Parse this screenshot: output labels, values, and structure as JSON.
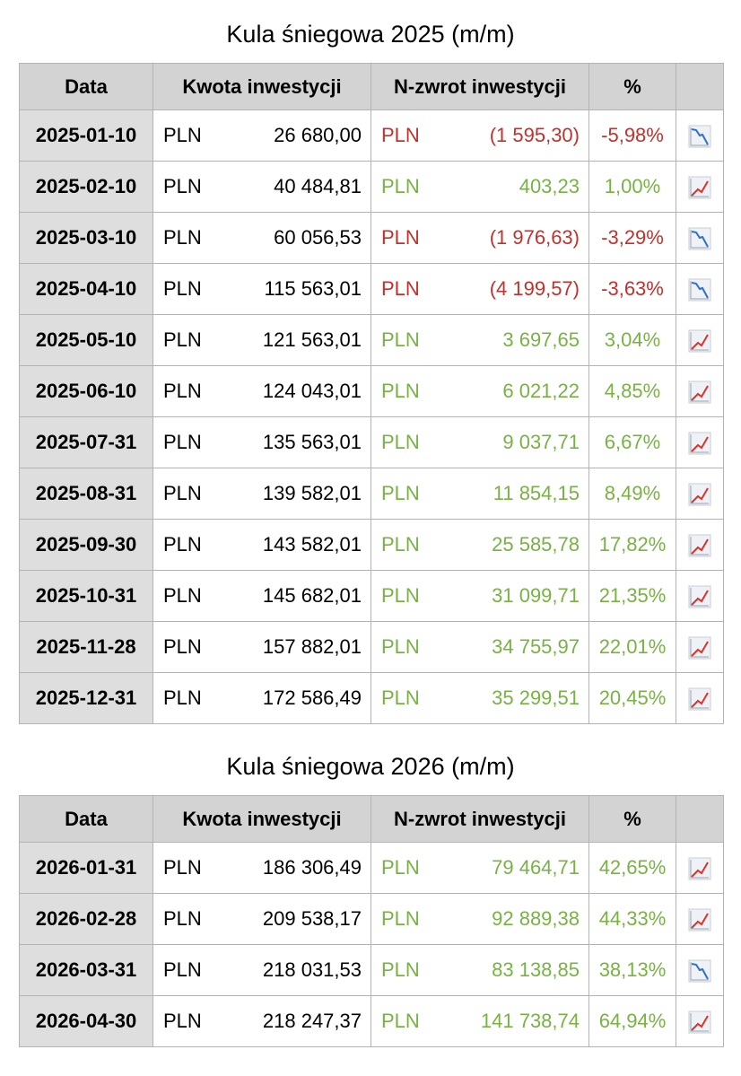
{
  "tables": [
    {
      "title": "Kula śniegowa 2025 (m/m)",
      "headers": [
        "Data",
        "Kwota inwestycji",
        "N-zwrot inwestycji",
        "%",
        ""
      ],
      "rows": [
        {
          "date": "2025-01-10",
          "inv_currency": "PLN",
          "investment": "26 680,00",
          "ret_currency": "PLN",
          "return": "(1 595,30)",
          "pct": "-5,98%",
          "trend": "down"
        },
        {
          "date": "2025-02-10",
          "inv_currency": "PLN",
          "investment": "40 484,81",
          "ret_currency": "PLN",
          "return": "403,23",
          "pct": "1,00%",
          "trend": "up"
        },
        {
          "date": "2025-03-10",
          "inv_currency": "PLN",
          "investment": "60 056,53",
          "ret_currency": "PLN",
          "return": "(1 976,63)",
          "pct": "-3,29%",
          "trend": "down"
        },
        {
          "date": "2025-04-10",
          "inv_currency": "PLN",
          "investment": "115 563,01",
          "ret_currency": "PLN",
          "return": "(4 199,57)",
          "pct": "-3,63%",
          "trend": "down"
        },
        {
          "date": "2025-05-10",
          "inv_currency": "PLN",
          "investment": "121 563,01",
          "ret_currency": "PLN",
          "return": "3 697,65",
          "pct": "3,04%",
          "trend": "up"
        },
        {
          "date": "2025-06-10",
          "inv_currency": "PLN",
          "investment": "124 043,01",
          "ret_currency": "PLN",
          "return": "6 021,22",
          "pct": "4,85%",
          "trend": "up"
        },
        {
          "date": "2025-07-31",
          "inv_currency": "PLN",
          "investment": "135 563,01",
          "ret_currency": "PLN",
          "return": "9 037,71",
          "pct": "6,67%",
          "trend": "up"
        },
        {
          "date": "2025-08-31",
          "inv_currency": "PLN",
          "investment": "139 582,01",
          "ret_currency": "PLN",
          "return": "11 854,15",
          "pct": "8,49%",
          "trend": "up"
        },
        {
          "date": "2025-09-30",
          "inv_currency": "PLN",
          "investment": "143 582,01",
          "ret_currency": "PLN",
          "return": "25 585,78",
          "pct": "17,82%",
          "trend": "up"
        },
        {
          "date": "2025-10-31",
          "inv_currency": "PLN",
          "investment": "145 682,01",
          "ret_currency": "PLN",
          "return": "31 099,71",
          "pct": "21,35%",
          "trend": "up"
        },
        {
          "date": "2025-11-28",
          "inv_currency": "PLN",
          "investment": "157 882,01",
          "ret_currency": "PLN",
          "return": "34 755,97",
          "pct": "22,01%",
          "trend": "up"
        },
        {
          "date": "2025-12-31",
          "inv_currency": "PLN",
          "investment": "172 586,49",
          "ret_currency": "PLN",
          "return": "35 299,51",
          "pct": "20,45%",
          "trend": "up"
        }
      ]
    },
    {
      "title": "Kula śniegowa 2026 (m/m)",
      "headers": [
        "Data",
        "Kwota inwestycji",
        "N-zwrot inwestycji",
        "%",
        ""
      ],
      "rows": [
        {
          "date": "2026-01-31",
          "inv_currency": "PLN",
          "investment": "186 306,49",
          "ret_currency": "PLN",
          "return": "79 464,71",
          "pct": "42,65%",
          "trend": "up"
        },
        {
          "date": "2026-02-28",
          "inv_currency": "PLN",
          "investment": "209 538,17",
          "ret_currency": "PLN",
          "return": "92 889,38",
          "pct": "44,33%",
          "trend": "up"
        },
        {
          "date": "2026-03-31",
          "inv_currency": "PLN",
          "investment": "218 031,53",
          "ret_currency": "PLN",
          "return": "83 138,85",
          "pct": "38,13%",
          "trend": "down"
        },
        {
          "date": "2026-04-30",
          "inv_currency": "PLN",
          "investment": "218 247,37",
          "ret_currency": "PLN",
          "return": "141 738,74",
          "pct": "64,94%",
          "trend": "up"
        }
      ]
    }
  ],
  "colors": {
    "negative": "#c4302b",
    "positive": "#78b243",
    "header_bg": "#d3d3d3",
    "date_bg": "#dedede",
    "trend_up_line": "#d9342b",
    "trend_down_line": "#2e6fd0"
  },
  "icons": {
    "up": "trend-up-icon",
    "down": "trend-down-icon"
  }
}
